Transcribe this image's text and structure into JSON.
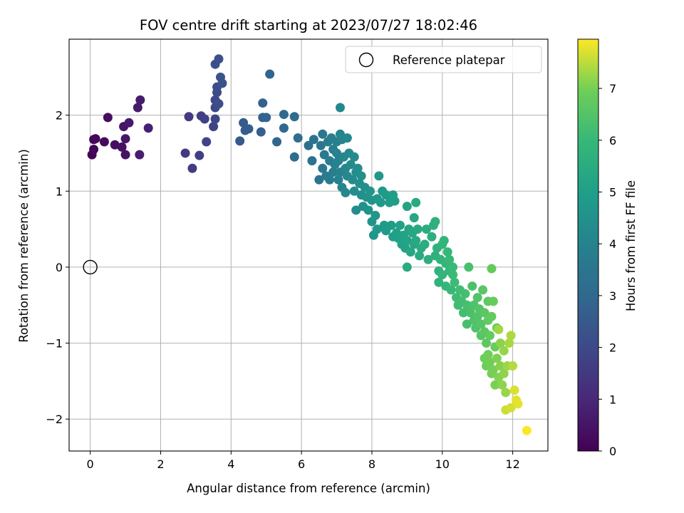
{
  "chart_data": {
    "type": "scatter",
    "title": "FOV centre drift starting at 2023/07/27 18:02:46",
    "xlabel": "Angular distance from reference (arcmin)",
    "ylabel": "Rotation from reference (arcmin)",
    "xlim": [
      -0.6,
      13.0
    ],
    "ylim": [
      -2.42,
      3.0
    ],
    "x_ticks": [
      0,
      2,
      4,
      6,
      8,
      10,
      12
    ],
    "y_ticks": [
      -2,
      -1,
      0,
      1,
      2
    ],
    "x_tick_labels": [
      "0",
      "2",
      "4",
      "6",
      "8",
      "10",
      "12"
    ],
    "y_tick_labels": [
      "−2",
      "−1",
      "0",
      "1",
      "2"
    ],
    "grid": true,
    "legend": {
      "placement": "top-right",
      "entries": [
        "Reference platepar"
      ]
    },
    "reference_point": {
      "x": 0,
      "y": 0,
      "label": "Reference platepar",
      "marker": "open-circle"
    },
    "colorbar": {
      "label": "Hours from first FF file",
      "colormap": "viridis",
      "range": [
        0,
        7.95
      ],
      "ticks": [
        0,
        1,
        2,
        3,
        4,
        5,
        6,
        7
      ],
      "tick_labels": [
        "0",
        "1",
        "2",
        "3",
        "4",
        "5",
        "6",
        "7"
      ]
    },
    "points": [
      [
        0.15,
        1.69,
        0.05
      ],
      [
        0.05,
        1.48,
        0.1
      ],
      [
        0.1,
        1.55,
        0.15
      ],
      [
        0.1,
        1.68,
        0.2
      ],
      [
        0.4,
        1.65,
        0.25
      ],
      [
        0.5,
        1.97,
        0.3
      ],
      [
        0.7,
        1.61,
        0.35
      ],
      [
        0.9,
        1.58,
        0.4
      ],
      [
        1.0,
        1.48,
        0.45
      ],
      [
        0.95,
        1.85,
        0.5
      ],
      [
        1.0,
        1.69,
        0.55
      ],
      [
        1.1,
        1.9,
        0.6
      ],
      [
        1.35,
        2.1,
        0.65
      ],
      [
        1.42,
        2.2,
        0.7
      ],
      [
        1.4,
        1.48,
        0.75
      ],
      [
        1.65,
        1.83,
        0.8
      ],
      [
        2.7,
        1.5,
        1.5
      ],
      [
        2.8,
        1.98,
        1.55
      ],
      [
        2.9,
        1.3,
        1.6
      ],
      [
        3.1,
        1.47,
        1.65
      ],
      [
        3.15,
        1.99,
        1.7
      ],
      [
        3.25,
        1.95,
        1.75
      ],
      [
        3.3,
        1.65,
        1.8
      ],
      [
        3.5,
        1.85,
        1.85
      ],
      [
        3.55,
        1.95,
        1.9
      ],
      [
        3.55,
        2.1,
        1.95
      ],
      [
        3.55,
        2.2,
        2.0
      ],
      [
        3.6,
        2.3,
        2.05
      ],
      [
        3.6,
        2.37,
        2.1
      ],
      [
        3.65,
        2.15,
        2.15
      ],
      [
        3.55,
        2.67,
        2.2
      ],
      [
        3.65,
        2.74,
        2.25
      ],
      [
        3.7,
        2.5,
        2.3
      ],
      [
        3.75,
        2.42,
        2.35
      ],
      [
        4.25,
        1.66,
        2.5
      ],
      [
        4.35,
        1.9,
        2.55
      ],
      [
        4.4,
        1.8,
        2.6
      ],
      [
        4.5,
        1.82,
        2.65
      ],
      [
        4.85,
        1.78,
        2.7
      ],
      [
        4.9,
        1.97,
        2.75
      ],
      [
        4.9,
        2.16,
        2.8
      ],
      [
        5.0,
        1.97,
        2.85
      ],
      [
        5.1,
        2.54,
        2.9
      ],
      [
        5.3,
        1.65,
        2.95
      ],
      [
        5.5,
        1.83,
        3.0
      ],
      [
        5.5,
        2.01,
        3.05
      ],
      [
        5.8,
        1.98,
        3.1
      ],
      [
        5.8,
        1.45,
        3.15
      ],
      [
        5.9,
        1.7,
        3.2
      ],
      [
        6.2,
        1.6,
        3.3
      ],
      [
        6.3,
        1.4,
        3.35
      ],
      [
        6.35,
        1.68,
        3.4
      ],
      [
        6.5,
        1.15,
        3.45
      ],
      [
        6.55,
        1.6,
        3.5
      ],
      [
        6.6,
        1.75,
        3.55
      ],
      [
        6.6,
        1.3,
        3.6
      ],
      [
        6.65,
        1.48,
        3.65
      ],
      [
        6.7,
        1.2,
        3.7
      ],
      [
        6.75,
        1.65,
        3.72
      ],
      [
        6.8,
        1.15,
        3.75
      ],
      [
        6.8,
        1.4,
        3.78
      ],
      [
        6.85,
        1.7,
        3.8
      ],
      [
        6.9,
        1.55,
        3.82
      ],
      [
        6.9,
        1.25,
        3.85
      ],
      [
        6.95,
        1.35,
        3.88
      ],
      [
        7.0,
        1.65,
        3.9
      ],
      [
        7.0,
        1.5,
        3.92
      ],
      [
        7.05,
        1.15,
        3.95
      ],
      [
        7.05,
        1.4,
        3.97
      ],
      [
        7.1,
        1.75,
        4.0
      ],
      [
        7.1,
        1.25,
        4.02
      ],
      [
        7.15,
        1.68,
        4.05
      ],
      [
        7.15,
        1.05,
        4.07
      ],
      [
        7.2,
        1.45,
        4.1
      ],
      [
        7.25,
        1.3,
        4.12
      ],
      [
        7.25,
        0.98,
        4.15
      ],
      [
        7.3,
        1.7,
        4.17
      ],
      [
        7.3,
        1.2,
        4.2
      ],
      [
        7.35,
        1.5,
        4.22
      ],
      [
        7.4,
        1.35,
        4.25
      ],
      [
        7.45,
        1.15,
        4.27
      ],
      [
        7.5,
        1.45,
        4.3
      ],
      [
        7.5,
        1.0,
        4.32
      ],
      [
        7.55,
        1.25,
        4.35
      ],
      [
        7.55,
        0.75,
        4.37
      ],
      [
        7.6,
        1.3,
        4.4
      ],
      [
        7.65,
        1.1,
        4.42
      ],
      [
        7.7,
        0.95,
        4.45
      ],
      [
        7.7,
        1.2,
        4.47
      ],
      [
        7.75,
        0.8,
        4.5
      ],
      [
        7.8,
        1.05,
        4.52
      ],
      [
        7.85,
        0.92,
        4.55
      ],
      [
        7.9,
        0.75,
        4.57
      ],
      [
        7.95,
        1.0,
        4.6
      ],
      [
        7.1,
        2.1,
        4.2
      ],
      [
        8.0,
        0.88,
        4.62
      ],
      [
        8.0,
        0.6,
        4.65
      ],
      [
        8.05,
        0.42,
        4.67
      ],
      [
        8.1,
        0.68,
        4.7
      ],
      [
        8.15,
        0.9,
        4.72
      ],
      [
        8.15,
        0.5,
        4.75
      ],
      [
        8.2,
        1.2,
        4.77
      ],
      [
        8.25,
        0.85,
        4.8
      ],
      [
        8.3,
        1.0,
        4.82
      ],
      [
        8.35,
        0.55,
        4.85
      ],
      [
        8.4,
        0.95,
        4.87
      ],
      [
        8.4,
        0.48,
        4.9
      ],
      [
        8.5,
        0.85,
        4.92
      ],
      [
        8.55,
        0.55,
        4.95
      ],
      [
        8.6,
        0.4,
        4.97
      ],
      [
        8.6,
        0.95,
        5.0
      ],
      [
        8.65,
        0.87,
        5.02
      ],
      [
        8.7,
        0.45,
        5.05
      ],
      [
        8.75,
        0.38,
        5.07
      ],
      [
        8.8,
        0.55,
        5.1
      ],
      [
        8.85,
        0.3,
        5.12
      ],
      [
        8.9,
        0.42,
        5.15
      ],
      [
        8.95,
        0.25,
        5.17
      ],
      [
        9.0,
        0.8,
        5.2
      ],
      [
        9.0,
        0.35,
        5.22
      ],
      [
        9.05,
        0.5,
        5.25
      ],
      [
        9.1,
        0.2,
        5.27
      ],
      [
        9.15,
        0.45,
        5.3
      ],
      [
        9.2,
        0.65,
        5.32
      ],
      [
        9.2,
        0.3,
        5.35
      ],
      [
        9.25,
        0.35,
        5.37
      ],
      [
        9.25,
        0.85,
        5.4
      ],
      [
        9.3,
        0.5,
        5.42
      ],
      [
        9.35,
        0.15,
        5.45
      ],
      [
        9.4,
        0.25,
        5.47
      ],
      [
        9.0,
        0.0,
        5.5
      ],
      [
        9.5,
        0.3,
        5.55
      ],
      [
        9.55,
        0.5,
        5.57
      ],
      [
        9.6,
        0.1,
        5.6
      ],
      [
        9.7,
        0.4,
        5.62
      ],
      [
        9.75,
        0.55,
        5.65
      ],
      [
        9.8,
        0.6,
        5.67
      ],
      [
        9.8,
        0.15,
        5.7
      ],
      [
        9.85,
        0.25,
        5.72
      ],
      [
        9.9,
        -0.05,
        5.75
      ],
      [
        9.9,
        -0.2,
        5.77
      ],
      [
        9.95,
        0.1,
        5.8
      ],
      [
        10.0,
        0.3,
        5.82
      ],
      [
        10.0,
        -0.1,
        5.85
      ],
      [
        10.05,
        0.35,
        5.87
      ],
      [
        10.1,
        0.05,
        5.9
      ],
      [
        10.1,
        -0.25,
        5.92
      ],
      [
        10.15,
        0.2,
        5.95
      ],
      [
        10.2,
        -0.05,
        5.97
      ],
      [
        10.2,
        0.1,
        6.0
      ],
      [
        10.25,
        -0.3,
        6.02
      ],
      [
        10.3,
        0.0,
        6.05
      ],
      [
        10.3,
        -0.1,
        6.07
      ],
      [
        10.35,
        -0.2,
        6.1
      ],
      [
        10.4,
        -0.4,
        6.12
      ],
      [
        10.45,
        -0.5,
        6.15
      ],
      [
        10.5,
        -0.3,
        6.17
      ],
      [
        10.55,
        -0.45,
        6.2
      ],
      [
        10.6,
        -0.6,
        6.22
      ],
      [
        10.65,
        -0.35,
        6.25
      ],
      [
        10.7,
        -0.75,
        6.27
      ],
      [
        10.7,
        -0.5,
        6.3
      ],
      [
        10.75,
        0.0,
        6.32
      ],
      [
        10.8,
        -0.6,
        6.35
      ],
      [
        10.85,
        -0.25,
        6.37
      ],
      [
        10.9,
        -0.7,
        6.4
      ],
      [
        10.9,
        -0.5,
        6.42
      ],
      [
        10.95,
        -0.8,
        6.45
      ],
      [
        11.0,
        -0.4,
        6.47
      ],
      [
        11.0,
        -0.65,
        6.5
      ],
      [
        11.05,
        -0.55,
        6.52
      ],
      [
        11.1,
        -0.75,
        6.55
      ],
      [
        11.1,
        -0.9,
        6.57
      ],
      [
        11.15,
        -0.3,
        6.6
      ],
      [
        11.2,
        -0.6,
        6.62
      ],
      [
        11.2,
        -0.85,
        6.65
      ],
      [
        11.25,
        -1.0,
        6.67
      ],
      [
        11.3,
        -0.45,
        6.7
      ],
      [
        11.3,
        -0.7,
        6.72
      ],
      [
        11.35,
        -0.9,
        6.75
      ],
      [
        11.4,
        -0.65,
        6.77
      ],
      [
        11.4,
        -0.02,
        6.8
      ],
      [
        11.45,
        -0.45,
        6.82
      ],
      [
        11.5,
        -1.05,
        6.85
      ],
      [
        11.55,
        -0.8,
        6.87
      ],
      [
        11.2,
        -1.2,
        6.9
      ],
      [
        11.25,
        -1.3,
        6.92
      ],
      [
        11.3,
        -1.15,
        6.95
      ],
      [
        11.35,
        -1.25,
        6.97
      ],
      [
        11.4,
        -1.4,
        7.0
      ],
      [
        11.45,
        -1.35,
        7.02
      ],
      [
        11.5,
        -1.55,
        7.05
      ],
      [
        11.55,
        -1.2,
        7.07
      ],
      [
        11.6,
        -1.45,
        7.1
      ],
      [
        11.65,
        -1.3,
        7.12
      ],
      [
        11.65,
        -1.0,
        7.15
      ],
      [
        11.7,
        -1.55,
        7.17
      ],
      [
        11.75,
        -1.4,
        7.2
      ],
      [
        11.75,
        -1.1,
        7.22
      ],
      [
        11.8,
        -1.65,
        7.25
      ],
      [
        11.85,
        -1.3,
        7.27
      ],
      [
        11.6,
        -0.82,
        7.3
      ],
      [
        11.9,
        -1.0,
        7.35
      ],
      [
        11.95,
        -0.9,
        7.4
      ],
      [
        12.0,
        -1.3,
        7.45
      ],
      [
        11.8,
        -1.88,
        7.6
      ],
      [
        11.95,
        -1.85,
        7.65
      ],
      [
        12.05,
        -1.62,
        7.7
      ],
      [
        12.1,
        -1.75,
        7.75
      ],
      [
        12.15,
        -1.8,
        7.8
      ],
      [
        12.4,
        -2.15,
        7.95
      ]
    ]
  }
}
